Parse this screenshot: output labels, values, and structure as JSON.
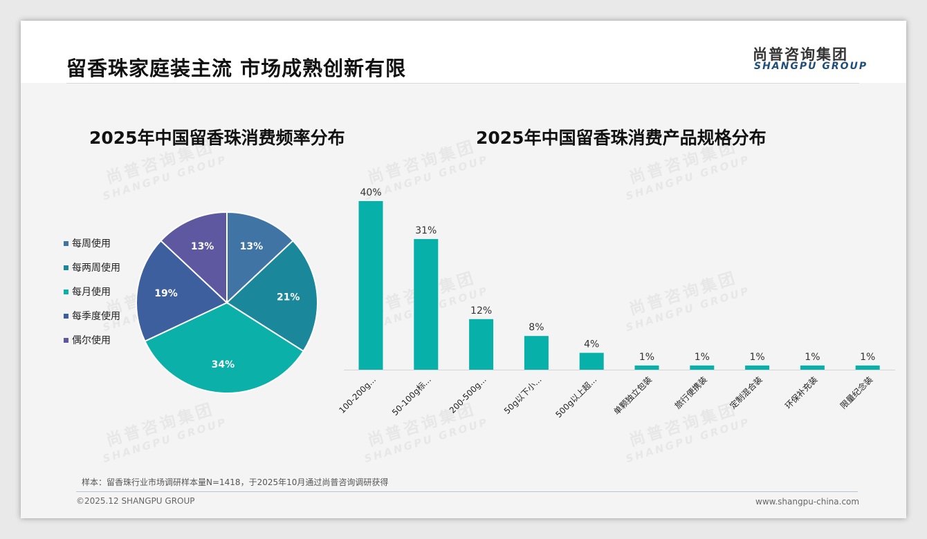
{
  "page": {
    "title": "留香珠家庭装主流 市场成熟创新有限",
    "logo_cn": "尚普咨询集团",
    "logo_en": "SHANGPU GROUP",
    "watermark_cn": "尚普咨询集团",
    "watermark_en": "SHANGPU GROUP",
    "sample_note": "样本：留香珠行业市场调研样本量N=1418，于2025年10月通过尚普咨询调研获得",
    "copyright": "©2025.12 SHANGPU GROUP",
    "website": "www.shangpu-china.com"
  },
  "chart_data": [
    {
      "type": "pie",
      "title": "2025年中国留香珠消费频率分布",
      "legend_position": "left",
      "slices": [
        {
          "label": "每周使用",
          "value": 13,
          "display": "13%",
          "color": "#3f74a4"
        },
        {
          "label": "每两周使用",
          "value": 21,
          "display": "21%",
          "color": "#1a879a"
        },
        {
          "label": "每月使用",
          "value": 34,
          "display": "34%",
          "color": "#0bb0a9"
        },
        {
          "label": "每季度使用",
          "value": 19,
          "display": "19%",
          "color": "#3e5f9e"
        },
        {
          "label": "偶尔使用",
          "value": 13,
          "display": "13%",
          "color": "#5d58a0"
        }
      ]
    },
    {
      "type": "bar",
      "title": "2025年中国留香珠消费产品规格分布",
      "bar_color": "#07b1aa",
      "grid": false,
      "ylim": [
        0,
        40
      ],
      "categories": [
        "100-200g...",
        "50-100g标...",
        "200-500g...",
        "50g以下小...",
        "500g以上超...",
        "单颗独立包装",
        "旅行便携装",
        "定制混合装",
        "环保补充装",
        "限量纪念装"
      ],
      "values": [
        40,
        31,
        12,
        8,
        4,
        1,
        1,
        1,
        1,
        1
      ],
      "labels": [
        "40%",
        "31%",
        "12%",
        "8%",
        "4%",
        "1%",
        "1%",
        "1%",
        "1%",
        "1%"
      ]
    }
  ]
}
